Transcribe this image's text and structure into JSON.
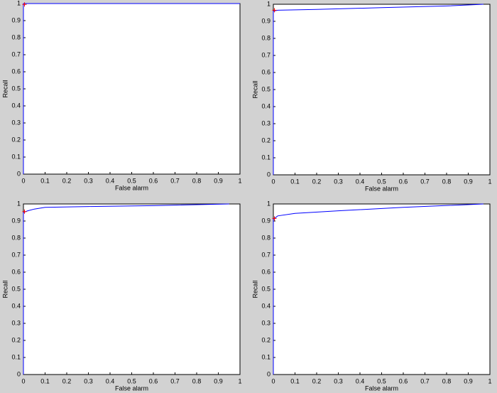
{
  "chart_data": [
    {
      "type": "line",
      "xlabel": "False alarm",
      "ylabel": "Recall",
      "xlim": [
        0,
        1
      ],
      "ylim": [
        0,
        1
      ],
      "xticks": [
        0,
        0.1,
        0.2,
        0.3,
        0.4,
        0.5,
        0.6,
        0.7,
        0.8,
        0.9,
        1
      ],
      "yticks": [
        0,
        0.1,
        0.2,
        0.3,
        0.4,
        0.5,
        0.6,
        0.7,
        0.8,
        0.9,
        1
      ],
      "series": [
        {
          "color": "#0000ff",
          "x": [
            0,
            0,
            1
          ],
          "values": [
            0,
            1,
            1
          ]
        },
        {
          "color": "#ff0000",
          "marker": "+",
          "x": [
            0.005
          ],
          "values": [
            0.995
          ]
        }
      ]
    },
    {
      "type": "line",
      "xlabel": "False alarm",
      "ylabel": "Recall",
      "xlim": [
        0,
        1
      ],
      "ylim": [
        0,
        1
      ],
      "xticks": [
        0,
        0.1,
        0.2,
        0.3,
        0.4,
        0.5,
        0.6,
        0.7,
        0.8,
        0.9,
        1
      ],
      "yticks": [
        0,
        0.1,
        0.2,
        0.3,
        0.4,
        0.5,
        0.6,
        0.7,
        0.8,
        0.9,
        1
      ],
      "series": [
        {
          "color": "#0000ff",
          "x": [
            0,
            0,
            0.02,
            0.2,
            0.5,
            0.8,
            0.97
          ],
          "values": [
            0,
            0.96,
            0.965,
            0.97,
            0.98,
            0.99,
            1
          ]
        },
        {
          "color": "#ff0000",
          "marker": "+",
          "x": [
            0.005
          ],
          "values": [
            0.965
          ]
        }
      ]
    },
    {
      "type": "line",
      "xlabel": "False alarm",
      "ylabel": "Recall",
      "xlim": [
        0,
        1
      ],
      "ylim": [
        0,
        1
      ],
      "xticks": [
        0,
        0.1,
        0.2,
        0.3,
        0.4,
        0.5,
        0.6,
        0.7,
        0.8,
        0.9,
        1
      ],
      "yticks": [
        0,
        0.1,
        0.2,
        0.3,
        0.4,
        0.5,
        0.6,
        0.7,
        0.8,
        0.9,
        1
      ],
      "series": [
        {
          "color": "#0000ff",
          "x": [
            0,
            0,
            0.02,
            0.05,
            0.1,
            0.3,
            0.6,
            0.95
          ],
          "values": [
            0,
            0.95,
            0.96,
            0.97,
            0.98,
            0.985,
            0.99,
            1
          ]
        },
        {
          "color": "#ff0000",
          "marker": "+",
          "x": [
            0.005
          ],
          "values": [
            0.955
          ]
        }
      ]
    },
    {
      "type": "line",
      "xlabel": "False alarm",
      "ylabel": "Recall",
      "xlim": [
        0,
        1
      ],
      "ylim": [
        0,
        1
      ],
      "xticks": [
        0,
        0.1,
        0.2,
        0.3,
        0.4,
        0.5,
        0.6,
        0.7,
        0.8,
        0.9,
        1
      ],
      "yticks": [
        0,
        0.1,
        0.2,
        0.3,
        0.4,
        0.5,
        0.6,
        0.7,
        0.8,
        0.9,
        1
      ],
      "series": [
        {
          "color": "#0000ff",
          "x": [
            0,
            0,
            0.02,
            0.1,
            0.3,
            0.6,
            0.97
          ],
          "values": [
            0,
            0.91,
            0.93,
            0.945,
            0.96,
            0.98,
            1
          ]
        },
        {
          "color": "#ff0000",
          "marker": "+",
          "x": [
            0.005
          ],
          "values": [
            0.915
          ]
        }
      ]
    }
  ]
}
